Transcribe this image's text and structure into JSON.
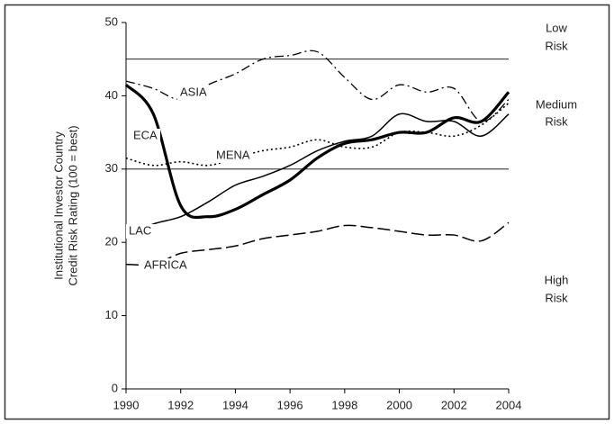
{
  "chart_data": {
    "type": "line",
    "y_label": [
      "Institutional Investor Country",
      "Credit Risk Rating (100 = best)"
    ],
    "x": [
      1990,
      1991,
      1992,
      1993,
      1994,
      1995,
      1996,
      1997,
      1998,
      1999,
      2000,
      2001,
      2002,
      2003,
      2004
    ],
    "xlim": [
      1990,
      2004
    ],
    "xticks": [
      1990,
      1992,
      1994,
      1996,
      1998,
      2000,
      2002,
      2004
    ],
    "ylim": [
      0,
      50
    ],
    "yticks": [
      0,
      10,
      20,
      30,
      40,
      50
    ],
    "reference_lines": [
      30,
      45
    ],
    "zone_labels": [
      [
        "Low",
        "Risk"
      ],
      [
        "Medium",
        "Risk"
      ],
      [
        "High",
        "Risk"
      ]
    ],
    "series": [
      {
        "name": "ASIA",
        "color": "#000000",
        "width": 1.3,
        "dash": "10 4 2 4",
        "values": [
          42,
          41,
          39.5,
          41.5,
          43,
          45,
          45.5,
          46,
          42.5,
          39.5,
          41.5,
          40.5,
          41,
          36.5,
          39.5
        ]
      },
      {
        "name": "ECA",
        "color": "#000000",
        "width": 3.2,
        "dash": "none",
        "values": [
          41.5,
          37.5,
          25,
          23.5,
          24.5,
          26.5,
          28.5,
          31.5,
          33.5,
          34,
          35,
          35,
          37,
          36.5,
          40.5
        ]
      },
      {
        "name": "MENA",
        "color": "#000000",
        "width": 1.6,
        "dash": "2 3",
        "values": [
          31.5,
          30.5,
          31,
          30.5,
          31.5,
          32.5,
          33,
          34,
          33,
          33,
          35,
          35,
          34.5,
          36,
          39
        ]
      },
      {
        "name": "LAC",
        "color": "#000000",
        "width": 1.5,
        "dash": "none",
        "values": [
          20.8,
          22.5,
          23.5,
          25.5,
          27.8,
          29,
          30.5,
          32.5,
          33.8,
          34.5,
          37.5,
          36.5,
          36.5,
          34.5,
          37.5
        ]
      },
      {
        "name": "AFRICA",
        "color": "#000000",
        "width": 1.5,
        "dash": "14 5",
        "values": [
          17,
          17,
          18.5,
          19,
          19.5,
          20.5,
          21,
          21.5,
          22.3,
          22,
          21.5,
          21,
          21,
          20.2,
          22.7
        ]
      }
    ]
  }
}
